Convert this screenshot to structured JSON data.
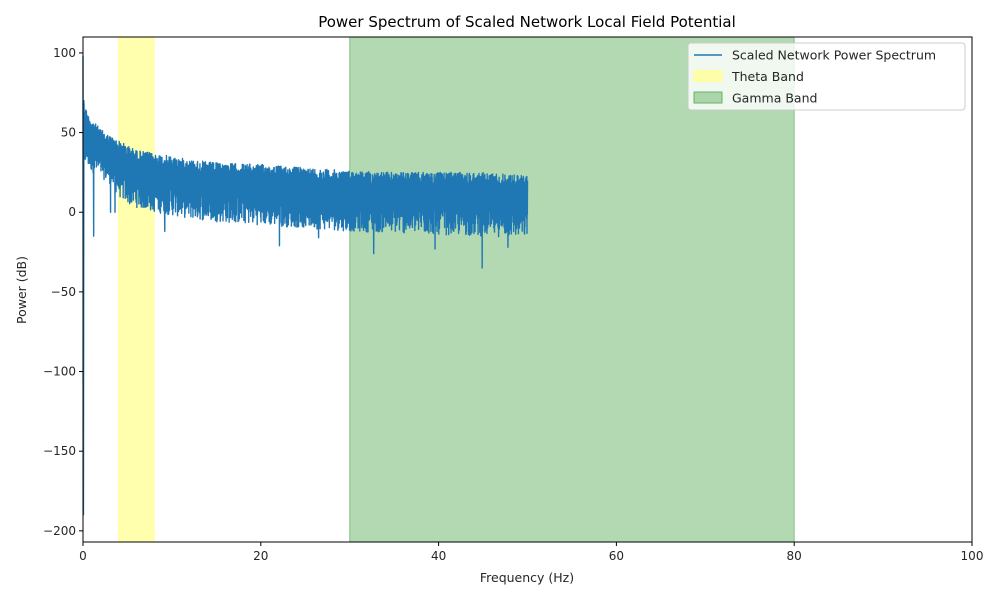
{
  "chart_data": {
    "type": "line",
    "title": "Power Spectrum of Scaled Network Local Field Potential",
    "xlabel": "Frequency (Hz)",
    "ylabel": "Power (dB)",
    "xlim": [
      0,
      100
    ],
    "ylim": [
      -207,
      110
    ],
    "xticks": [
      0,
      20,
      40,
      60,
      80,
      100
    ],
    "xtick_labels": [
      "0",
      "20",
      "40",
      "60",
      "80",
      "100"
    ],
    "yticks": [
      100,
      50,
      0,
      -50,
      -100,
      -150,
      -200
    ],
    "ytick_labels": [
      "100",
      "50",
      "0",
      "−50",
      "−100",
      "−150",
      "−200"
    ],
    "grid": false,
    "legend_position": "top-right",
    "series": [
      {
        "name": "Scaled Network Power Spectrum",
        "color": "#1f77b4",
        "x_range": [
          0,
          50
        ],
        "envelope": {
          "x": [
            0,
            0.1,
            0.5,
            1,
            2,
            3,
            4,
            5,
            6,
            8,
            10,
            12,
            15,
            20,
            25,
            30,
            35,
            40,
            45,
            50
          ],
          "upper": [
            98,
            70,
            62,
            58,
            52,
            48,
            45,
            42,
            39,
            37,
            35,
            33,
            31,
            30,
            28,
            26,
            25,
            25,
            25,
            23
          ],
          "lower": [
            -190,
            30,
            28,
            25,
            22,
            18,
            10,
            5,
            3,
            0,
            -2,
            -4,
            -6,
            -8,
            -10,
            -12,
            -13,
            -14,
            -15,
            -16
          ]
        },
        "outlier_dips": [
          {
            "x": 1.2,
            "y": -15
          },
          {
            "x": 3.1,
            "y": 0
          },
          {
            "x": 3.6,
            "y": 0
          },
          {
            "x": 9.2,
            "y": -12
          },
          {
            "x": 22.1,
            "y": -21
          },
          {
            "x": 26.5,
            "y": -16
          },
          {
            "x": 32.7,
            "y": -26
          },
          {
            "x": 39.6,
            "y": -23
          },
          {
            "x": 44.9,
            "y": -35
          },
          {
            "x": 47.8,
            "y": -22
          }
        ]
      }
    ],
    "bands": [
      {
        "name": "Theta Band",
        "x_range": [
          4,
          8
        ],
        "color": "#ffff99",
        "opacity": 0.8
      },
      {
        "name": "Gamma Band",
        "x_range": [
          30,
          80
        ],
        "color": "#66b366",
        "opacity": 0.5
      }
    ]
  }
}
